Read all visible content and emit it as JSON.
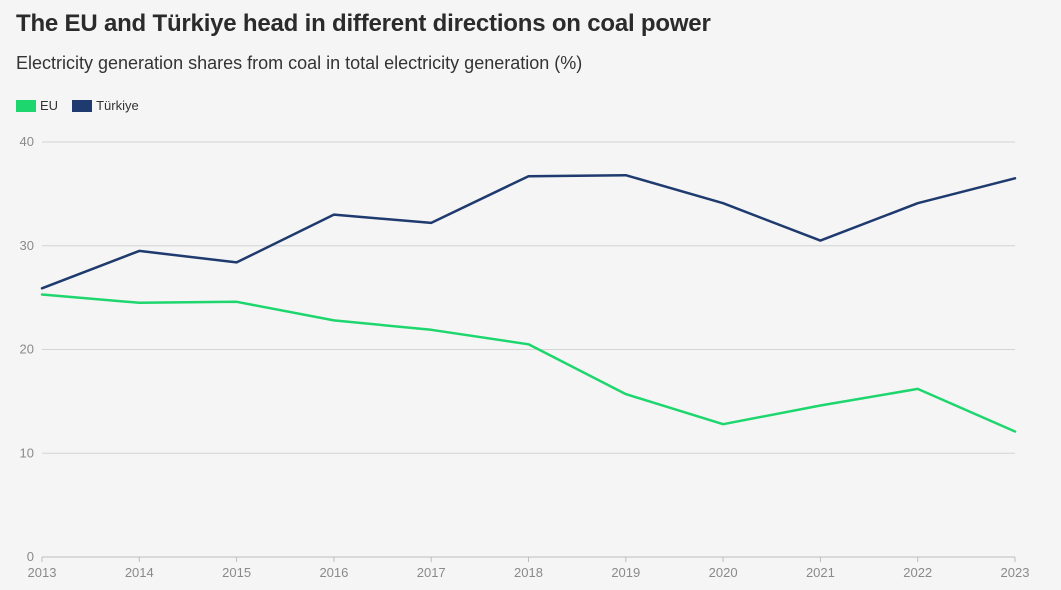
{
  "title": "The EU and Türkiye head in different directions on coal power",
  "subtitle": "Electricity generation shares from coal in total electricity generation (%)",
  "chart_data": {
    "type": "line",
    "title": "The EU and Türkiye head in different directions on coal power",
    "subtitle": "Electricity generation shares from coal in total electricity generation (%)",
    "x": [
      2013,
      2014,
      2015,
      2016,
      2017,
      2018,
      2019,
      2020,
      2021,
      2022,
      2023
    ],
    "x_tick_labels": [
      "2013",
      "2014",
      "2015",
      "2016",
      "2017",
      "2018",
      "2019",
      "2020",
      "2021",
      "2022",
      "2023"
    ],
    "y_ticks": [
      0,
      10,
      20,
      30,
      40
    ],
    "y_tick_labels": [
      "0",
      "10",
      "20",
      "30",
      "40"
    ],
    "ylim": [
      0,
      40
    ],
    "grid": "horizontal",
    "legend_position": "top-left",
    "series": [
      {
        "name": "EU",
        "color": "#1ed66e",
        "values": [
          25.3,
          24.5,
          24.6,
          22.8,
          21.9,
          20.5,
          15.7,
          12.8,
          14.6,
          16.2,
          12.1
        ]
      },
      {
        "name": "Türkiye",
        "color": "#1f3a6e",
        "values": [
          25.9,
          29.5,
          28.4,
          33.0,
          32.2,
          36.7,
          36.8,
          34.1,
          30.5,
          34.1,
          36.5
        ]
      }
    ]
  }
}
